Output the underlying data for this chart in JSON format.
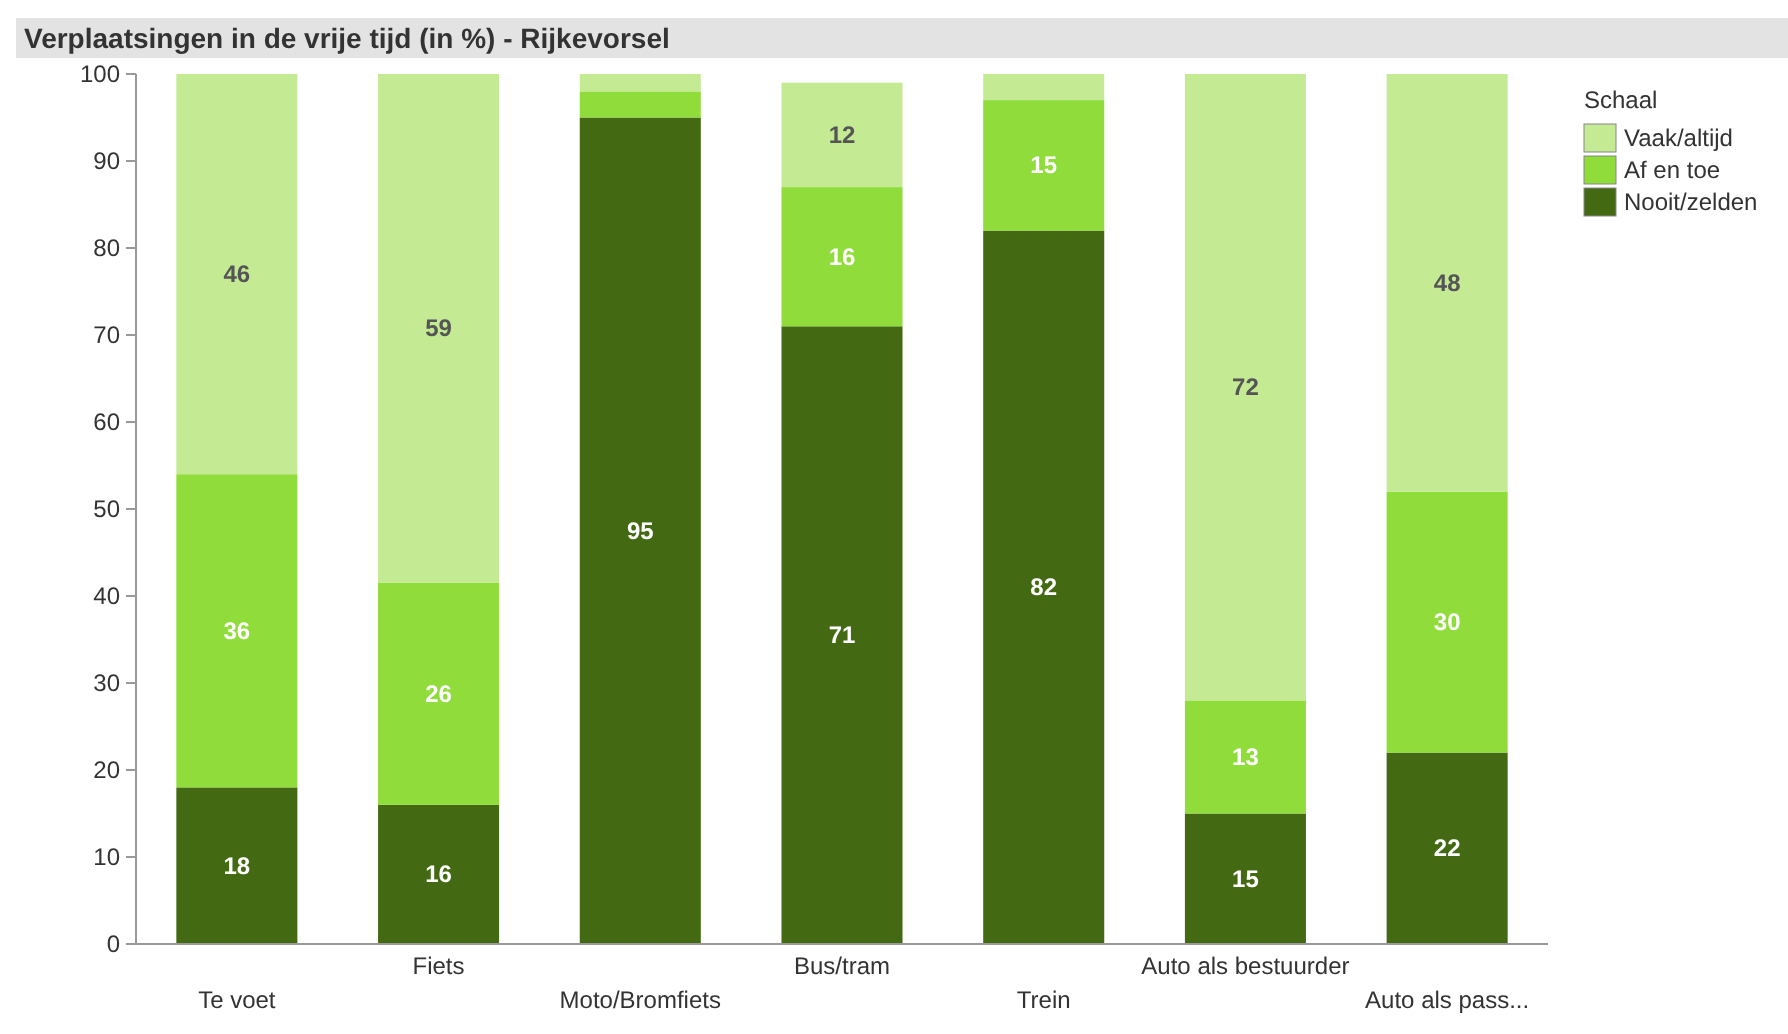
{
  "chart_data": {
    "type": "bar",
    "stacked": true,
    "title": "Verplaatsingen in de vrije tijd (in %) - Rijkevorsel",
    "legend_title": "Schaal",
    "legend": "top right",
    "categories": [
      "Te voet",
      "Fiets",
      "Moto/Bromfiets",
      "Bus/tram",
      "Trein",
      "Auto als bestuurder",
      "Auto als pass..."
    ],
    "series": [
      {
        "name": "Nooit/zelden",
        "color": "#436a12",
        "values": [
          18,
          16,
          95,
          71,
          82,
          15,
          22
        ],
        "value_labels": [
          "18",
          "16",
          "95",
          "71",
          "82",
          "15",
          "22"
        ]
      },
      {
        "name": "Af en toe",
        "color": "#8fdc3a",
        "values": [
          36,
          25.5,
          3,
          16,
          15,
          13,
          30
        ],
        "value_labels": [
          "36",
          "26",
          null,
          "16",
          "15",
          "13",
          "30"
        ]
      },
      {
        "name": "Vaak/altijd",
        "color": "#c4ea94",
        "values": [
          46,
          58.5,
          2,
          12,
          3,
          72,
          48
        ],
        "value_labels": [
          "46",
          "59",
          null,
          "12",
          null,
          "72",
          "48"
        ]
      }
    ],
    "ylim": [
      0,
      100
    ],
    "yticks": [
      0,
      10,
      20,
      30,
      40,
      50,
      60,
      70,
      80,
      90,
      100
    ],
    "grid": false
  }
}
